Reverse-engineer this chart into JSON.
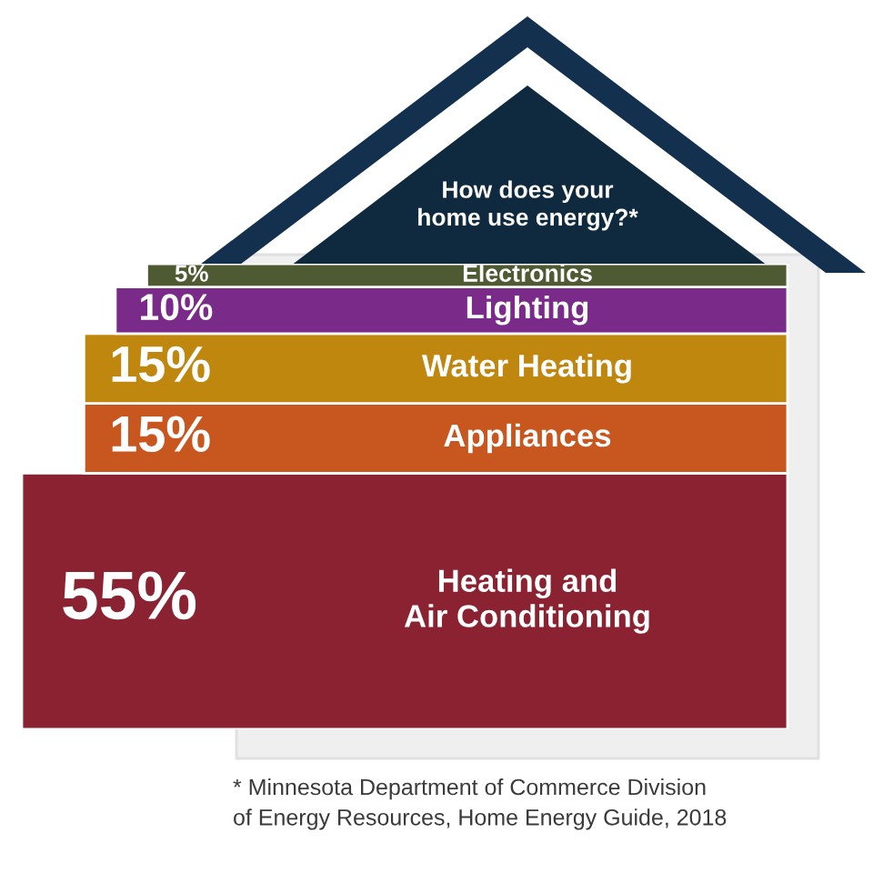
{
  "chart_data": {
    "type": "bar",
    "stacked": true,
    "categories": [
      null
    ],
    "tick_labels": false,
    "title": "How does your\nhome use energy?*",
    "series": [
      {
        "name": "Heating and\nAir Conditioning",
        "color": "#8a2232",
        "values": [
          55
        ],
        "value_labels": [
          "55%"
        ]
      },
      {
        "name": "Appliances",
        "color": "#c8561f",
        "values": [
          15
        ],
        "value_labels": [
          "15%"
        ]
      },
      {
        "name": "Water Heating",
        "color": "#c0870f",
        "values": [
          15
        ],
        "value_labels": [
          "15%"
        ]
      },
      {
        "name": "Lighting",
        "color": "#7a2a88",
        "values": [
          10
        ],
        "value_labels": [
          "10%"
        ]
      },
      {
        "name": "Electronics",
        "color": "#4e5a32",
        "values": [
          5
        ],
        "value_labels": [
          "5%"
        ]
      }
    ],
    "annotations": [
      "* Minnesota Department of Commerce Division\nof Energy Resources, Home Energy Guide, 2018"
    ]
  }
}
